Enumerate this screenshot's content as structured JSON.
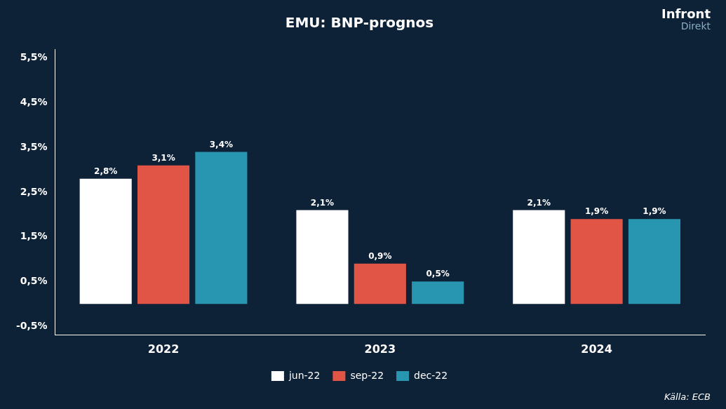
{
  "chart_data": {
    "type": "bar",
    "title": "EMU: BNP-prognos",
    "categories": [
      "2022",
      "2023",
      "2024"
    ],
    "series": [
      {
        "name": "jun-22",
        "color": "#ffffff",
        "values": [
          2.8,
          2.1,
          2.1
        ],
        "value_labels": [
          "2,8%",
          "2,1%",
          "2,1%"
        ]
      },
      {
        "name": "sep-22",
        "color": "#e05545",
        "values": [
          3.1,
          0.9,
          1.9
        ],
        "value_labels": [
          "3,1%",
          "0,9%",
          "1,9%"
        ]
      },
      {
        "name": "dec-22",
        "color": "#2896b0",
        "values": [
          3.4,
          0.5,
          1.9
        ],
        "value_labels": [
          "3,4%",
          "0,5%",
          "1,9%"
        ]
      }
    ],
    "ylim": [
      -0.7,
      5.7
    ],
    "yticks": [
      {
        "value": -0.5,
        "label": "-0,5%"
      },
      {
        "value": 0.5,
        "label": "0,5%"
      },
      {
        "value": 1.5,
        "label": "1,5%"
      },
      {
        "value": 2.5,
        "label": "2,5%"
      },
      {
        "value": 3.5,
        "label": "3,5%"
      },
      {
        "value": 4.5,
        "label": "4,5%"
      },
      {
        "value": 5.5,
        "label": "5,5%"
      }
    ],
    "grid": false,
    "legend": "bottom",
    "data_labels": true,
    "annotations": [
      "Källa: ECB",
      "Infront",
      "Direkt"
    ]
  }
}
